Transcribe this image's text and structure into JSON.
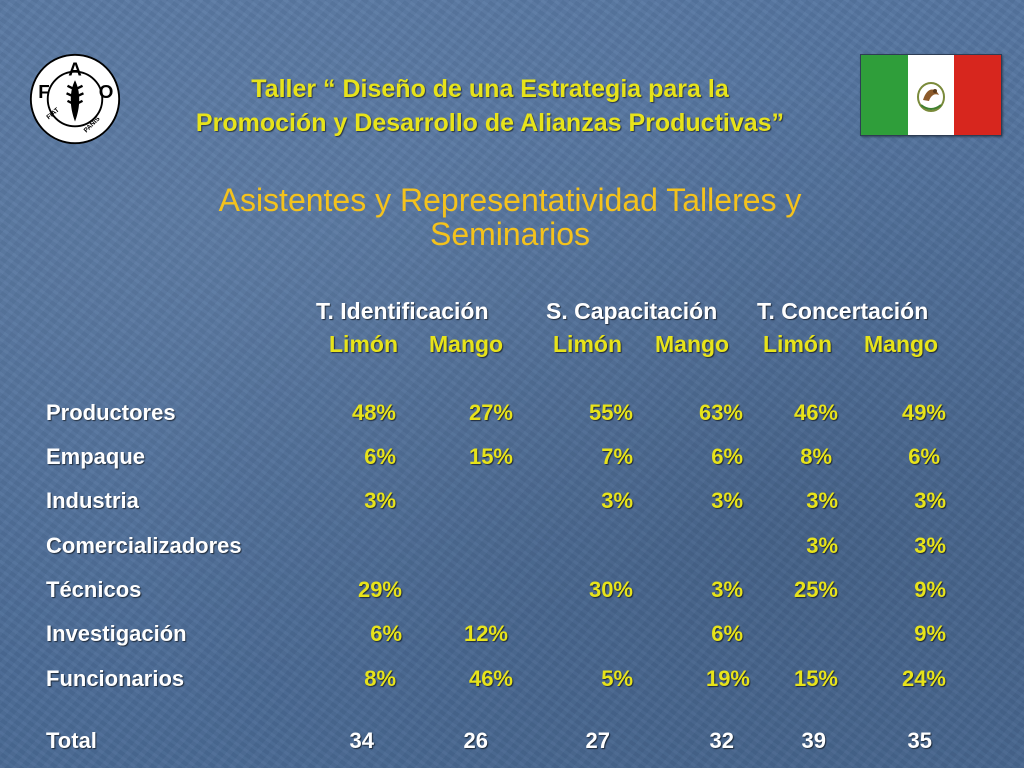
{
  "header": {
    "logo_text": "FAO FIAT PANIS",
    "title_line1": "Taller “ Diseño de una Estrategia para la",
    "title_line2": "Promoción y Desarrollo de Alianzas Productivas”",
    "flag_icon": "mexico-flag-icon",
    "flag_colors": [
      "#2f9e3a",
      "#ffffff",
      "#d7261e"
    ]
  },
  "main_title": {
    "line1": "Asistentes y Representatividad Talleres y",
    "line2": "Seminarios"
  },
  "table": {
    "groups": [
      "T. Identificación",
      "S. Capacitación",
      "T. Concertación"
    ],
    "subheaders": [
      "Limón",
      "Mango",
      "Limón",
      "Mango",
      "Limón",
      "Mango"
    ],
    "rows": [
      {
        "label": "Productores",
        "values": [
          "48%",
          "27%",
          "55%",
          "63%",
          "46%",
          "49%"
        ]
      },
      {
        "label": "Empaque",
        "values": [
          "6%",
          "15%",
          "7%",
          "6%",
          "8%",
          "6%"
        ]
      },
      {
        "label": "Industria",
        "values": [
          "3%",
          "",
          "3%",
          "3%",
          "3%",
          "3%"
        ]
      },
      {
        "label": "Comercializadores",
        "values": [
          "",
          "",
          "",
          "",
          "3%",
          "3%"
        ]
      },
      {
        "label": "Técnicos",
        "values": [
          "29%",
          "",
          "30%",
          "3%",
          "25%",
          "9%"
        ]
      },
      {
        "label": "Investigación",
        "values": [
          "6%",
          "12%",
          "",
          "6%",
          "",
          "9%"
        ]
      },
      {
        "label": "Funcionarios",
        "values": [
          "8%",
          "46%",
          "5%",
          "19%",
          "15%",
          "24%"
        ]
      }
    ],
    "total": {
      "label": "Total",
      "values": [
        "34",
        "26",
        "27",
        "32",
        "39",
        "35"
      ]
    }
  }
}
